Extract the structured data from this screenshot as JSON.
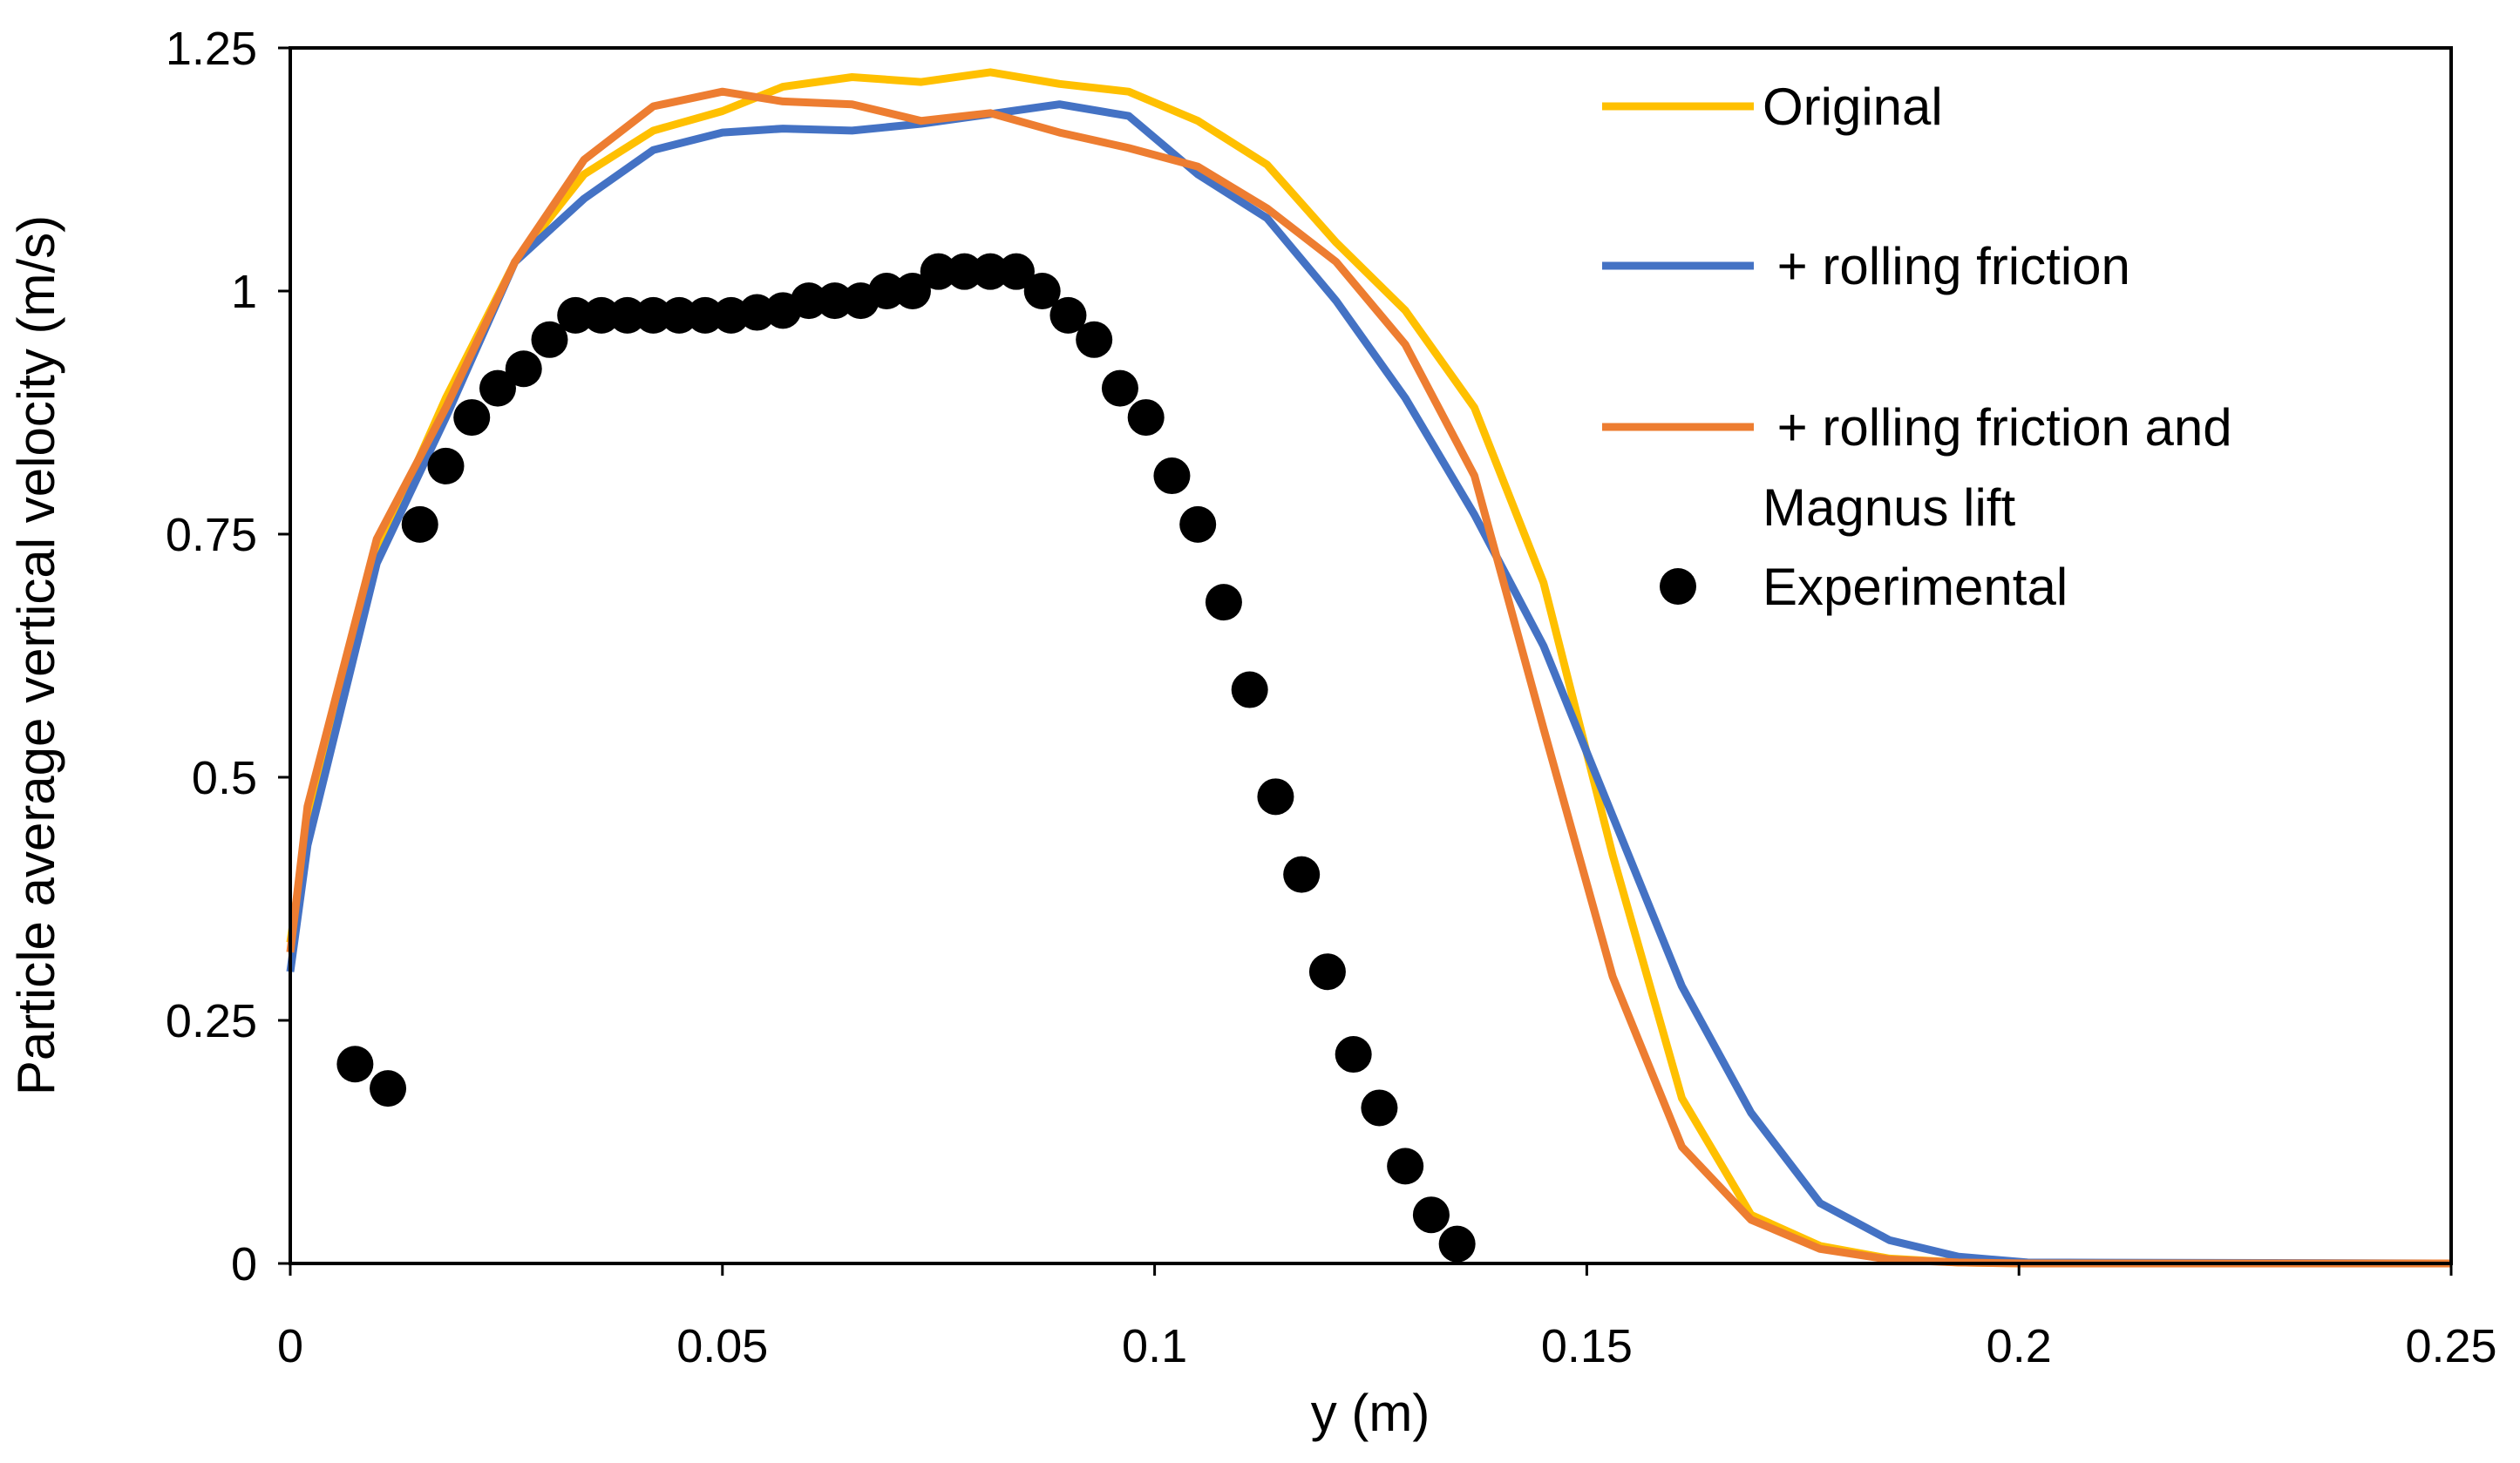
{
  "chart_data": {
    "type": "line",
    "title": "",
    "xlabel": "y (m)",
    "ylabel": "Particle average vertical velocity (m/s)",
    "xlim": [
      0,
      0.25
    ],
    "ylim": [
      0,
      1.25
    ],
    "xticks": [
      "0",
      "0.05",
      "0.1",
      "0.15",
      "0.2",
      "0.25"
    ],
    "yticks": [
      "0",
      "0.25",
      "0.5",
      "0.75",
      "1",
      "1.25"
    ],
    "grid": false,
    "legend_position": "top-right",
    "series": [
      {
        "name": "Original",
        "color": "#FFC000",
        "style": "line",
        "x": [
          0,
          0.002,
          0.01,
          0.018,
          0.026,
          0.034,
          0.042,
          0.05,
          0.057,
          0.065,
          0.073,
          0.081,
          0.089,
          0.097,
          0.105,
          0.113,
          0.121,
          0.129,
          0.137,
          0.145,
          0.153,
          0.161,
          0.169,
          0.177,
          0.185,
          0.193,
          0.201,
          0.25
        ],
        "values": [
          0.33,
          0.45,
          0.73,
          0.89,
          1.03,
          1.12,
          1.165,
          1.185,
          1.21,
          1.22,
          1.215,
          1.225,
          1.213,
          1.205,
          1.175,
          1.13,
          1.05,
          0.98,
          0.88,
          0.7,
          0.42,
          0.17,
          0.05,
          0.018,
          0.005,
          0.001,
          0,
          0
        ]
      },
      {
        "name": "+ rolling friction",
        "color": "#4472C4",
        "style": "line",
        "x": [
          0,
          0.002,
          0.01,
          0.018,
          0.026,
          0.034,
          0.042,
          0.05,
          0.057,
          0.065,
          0.073,
          0.081,
          0.089,
          0.097,
          0.105,
          0.113,
          0.121,
          0.129,
          0.137,
          0.145,
          0.153,
          0.161,
          0.169,
          0.177,
          0.185,
          0.193,
          0.201,
          0.25
        ],
        "values": [
          0.3,
          0.43,
          0.72,
          0.87,
          1.03,
          1.095,
          1.145,
          1.163,
          1.167,
          1.165,
          1.172,
          1.182,
          1.192,
          1.18,
          1.12,
          1.075,
          0.99,
          0.89,
          0.77,
          0.635,
          0.46,
          0.285,
          0.155,
          0.062,
          0.024,
          0.007,
          0.001,
          0
        ]
      },
      {
        "name": "+ rolling friction and Magnus lift",
        "color": "#ED7D31",
        "style": "line",
        "x": [
          0,
          0.002,
          0.01,
          0.018,
          0.026,
          0.034,
          0.042,
          0.05,
          0.057,
          0.065,
          0.073,
          0.081,
          0.089,
          0.097,
          0.105,
          0.113,
          0.121,
          0.129,
          0.137,
          0.145,
          0.153,
          0.161,
          0.169,
          0.177,
          0.185,
          0.193,
          0.201,
          0.25
        ],
        "values": [
          0.32,
          0.47,
          0.745,
          0.88,
          1.03,
          1.135,
          1.19,
          1.205,
          1.195,
          1.192,
          1.175,
          1.183,
          1.163,
          1.147,
          1.128,
          1.085,
          1.03,
          0.945,
          0.81,
          0.55,
          0.295,
          0.12,
          0.045,
          0.015,
          0.004,
          0.001,
          0,
          0
        ]
      },
      {
        "name": "Experimental",
        "color": "#000000",
        "style": "marker",
        "x": [
          0.0075,
          0.0113,
          0.015,
          0.018,
          0.021,
          0.024,
          0.027,
          0.03,
          0.033,
          0.036,
          0.039,
          0.042,
          0.045,
          0.048,
          0.051,
          0.054,
          0.057,
          0.06,
          0.063,
          0.066,
          0.069,
          0.072,
          0.075,
          0.078,
          0.081,
          0.084,
          0.087,
          0.09,
          0.093,
          0.096,
          0.099,
          0.102,
          0.105,
          0.108,
          0.111,
          0.114,
          0.117,
          0.12,
          0.123,
          0.126,
          0.129,
          0.132,
          0.135
        ],
        "values": [
          0.205,
          0.18,
          0.76,
          0.82,
          0.87,
          0.9,
          0.92,
          0.95,
          0.975,
          0.975,
          0.975,
          0.975,
          0.975,
          0.975,
          0.975,
          0.978,
          0.98,
          0.99,
          0.99,
          0.99,
          1.0,
          1.0,
          1.02,
          1.02,
          1.02,
          1.02,
          1.0,
          0.975,
          0.95,
          0.9,
          0.87,
          0.81,
          0.76,
          0.68,
          0.59,
          0.48,
          0.4,
          0.3,
          0.215,
          0.16,
          0.1,
          0.05,
          0.02
        ]
      }
    ],
    "legend": [
      {
        "label_lines": [
          "Original"
        ]
      },
      {
        "label_lines": [
          " + rolling friction"
        ]
      },
      {
        "label_lines": [
          " + rolling friction and",
          "Magnus lift"
        ]
      },
      {
        "label_lines": [
          "Experimental"
        ]
      }
    ]
  }
}
